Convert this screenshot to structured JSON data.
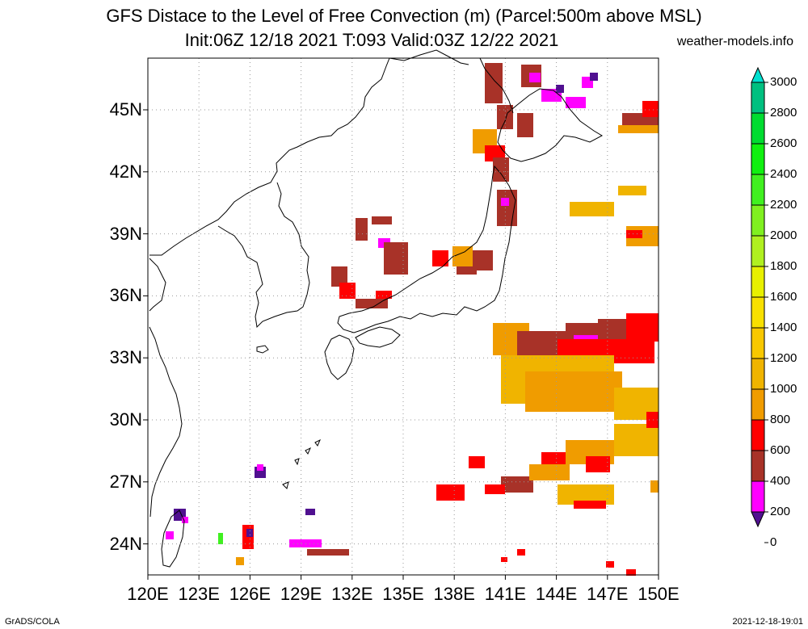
{
  "header": {
    "title_line1": "GFS Distace to the Level of Free Convection (m) (Parcel:500m above MSL)",
    "title_line2": "Init:06Z 12/18 2021 T:093 Valid:03Z 12/22 2021",
    "credit": "weather-models.info"
  },
  "map": {
    "lon_labels": [
      "120E",
      "123E",
      "126E",
      "129E",
      "132E",
      "135E",
      "138E",
      "141E",
      "144E",
      "147E",
      "150E"
    ],
    "lat_labels": [
      "45N",
      "42N",
      "39N",
      "36N",
      "33N",
      "30N",
      "27N",
      "24N"
    ],
    "lon_range": [
      120,
      150
    ],
    "lat_range": [
      22.5,
      47.5
    ],
    "grid": "dotted"
  },
  "colorbar": {
    "labels": [
      "3000",
      "2800",
      "2600",
      "2400",
      "2200",
      "2000",
      "1800",
      "1600",
      "1400",
      "1200",
      "1000",
      "800",
      "600",
      "400",
      "200",
      "0"
    ],
    "colors": [
      "#00e0d0",
      "#00c080",
      "#00dc30",
      "#10f010",
      "#40f020",
      "#80f020",
      "#b0f020",
      "#e8f000",
      "#f8e000",
      "#f8c800",
      "#f0b400",
      "#f09c00",
      "#ff0000",
      "#a83228",
      "#ff00ff",
      "#501090"
    ]
  },
  "footer": {
    "left": "GrADS/COLA",
    "right": "2021-12-18-19:01"
  }
}
